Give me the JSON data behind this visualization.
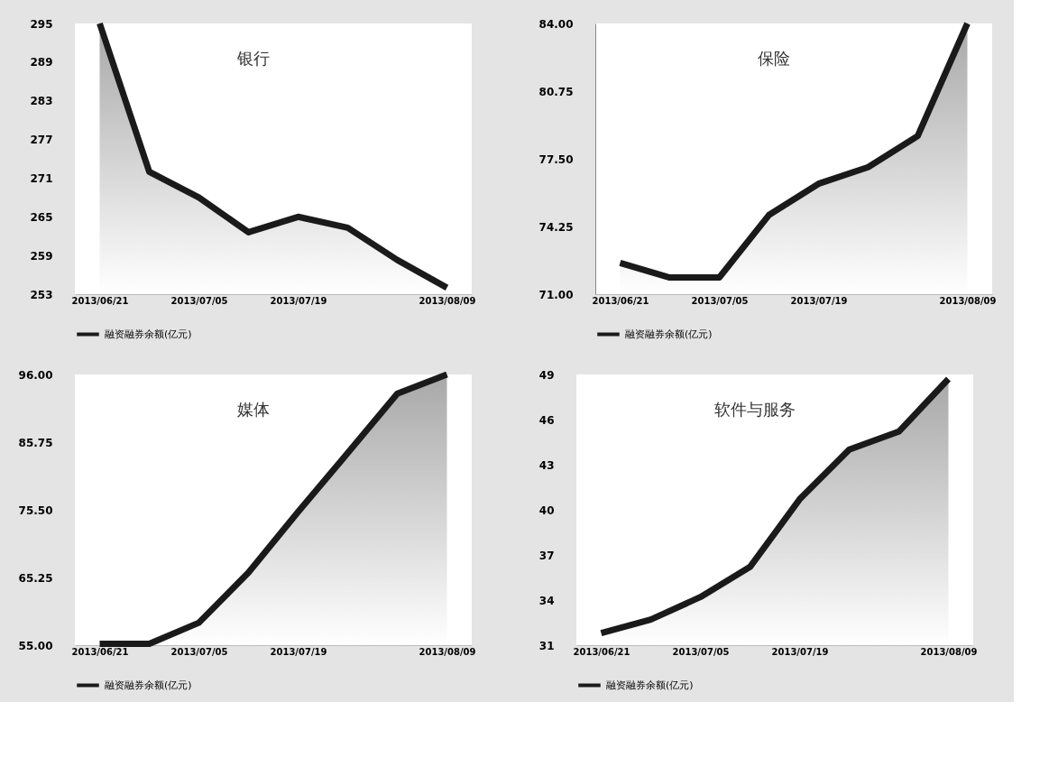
{
  "chart_data": [
    {
      "type": "area",
      "title": "银行",
      "categories": [
        "2013/06/21",
        null,
        "2013/07/05",
        null,
        "2013/07/19",
        null,
        null,
        "2013/08/09"
      ],
      "series": [
        {
          "name": "融资融券余额(亿元)",
          "color": "#1a1a1a",
          "values": [
            295,
            272,
            268,
            262.6,
            265,
            263.3,
            258.3,
            254
          ]
        }
      ],
      "ylim": [
        253,
        295
      ],
      "yticks": [
        253,
        259,
        265,
        271,
        277,
        283,
        289,
        295
      ],
      "grid": false,
      "legend": "bottom"
    },
    {
      "type": "area",
      "title": "保险",
      "categories": [
        "2013/06/21",
        null,
        "2013/07/05",
        null,
        "2013/07/19",
        null,
        null,
        "2013/08/09"
      ],
      "series": [
        {
          "name": "融资融券余额(亿元)",
          "color": "#1a1a1a",
          "values": [
            72.5,
            71.8,
            71.8,
            74.8,
            76.3,
            77.1,
            78.6,
            84.0
          ]
        }
      ],
      "ylim": [
        71,
        84
      ],
      "yticks": [
        {
          "value": 71,
          "label": "71.00"
        },
        {
          "value": 74.25,
          "label": "74.25"
        },
        {
          "value": 77.5,
          "label": "77.50"
        },
        {
          "value": 80.75,
          "label": "80.75"
        },
        {
          "value": 84,
          "label": "84.00"
        }
      ],
      "grid": false,
      "legend": "bottom"
    },
    {
      "type": "area",
      "title": "媒体",
      "categories": [
        "2013/06/21",
        null,
        "2013/07/05",
        null,
        "2013/07/19",
        null,
        null,
        "2013/08/09"
      ],
      "series": [
        {
          "name": "融资融券余额(亿元)",
          "color": "#1a1a1a",
          "values": [
            55.2,
            55.2,
            58.4,
            66,
            75.2,
            84.1,
            93.1,
            96
          ]
        }
      ],
      "ylim": [
        55,
        96
      ],
      "yticks": [
        {
          "value": 55,
          "label": "55.00"
        },
        {
          "value": 65.25,
          "label": "65.25"
        },
        {
          "value": 75.5,
          "label": "75.50"
        },
        {
          "value": 85.75,
          "label": "85.75"
        },
        {
          "value": 96,
          "label": "96.00"
        }
      ],
      "grid": false,
      "legend": "bottom"
    },
    {
      "type": "area",
      "title": "软件与服务",
      "categories": [
        "2013/06/21",
        null,
        "2013/07/05",
        null,
        "2013/07/19",
        null,
        null,
        "2013/08/09"
      ],
      "series": [
        {
          "name": "融资融券余额(亿元)",
          "color": "#1a1a1a",
          "values": [
            31.8,
            32.7,
            34.2,
            36.2,
            40.7,
            44.0,
            45.2,
            48.7
          ]
        }
      ],
      "ylim": [
        31,
        49
      ],
      "yticks": [
        31,
        34,
        37,
        40,
        43,
        46,
        49
      ],
      "grid": false,
      "legend": "bottom"
    }
  ]
}
